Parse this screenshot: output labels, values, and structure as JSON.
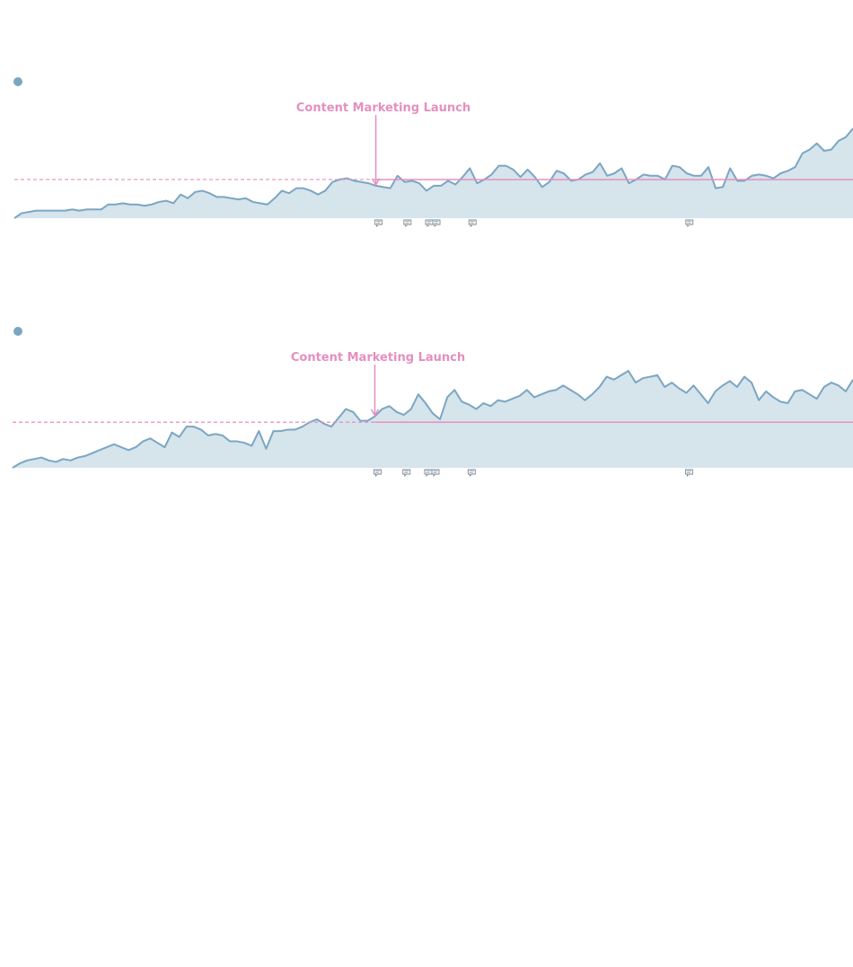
{
  "colors": {
    "line": "#7ba6c2",
    "area": "#d6e4ec",
    "annotation": "#e58fbf",
    "note_icon": "#7a8a96"
  },
  "chart_data": [
    {
      "type": "area",
      "title": "",
      "xlabel": "",
      "ylabel": "",
      "grid": false,
      "legend": "top-left",
      "series": [
        {
          "values": [
            0,
            4,
            5,
            6,
            6,
            6,
            6,
            6,
            7,
            6,
            7,
            7,
            7,
            11,
            11,
            12,
            11,
            11,
            10,
            11,
            13,
            14,
            12,
            19,
            16,
            21,
            22,
            20,
            17,
            17,
            16,
            15,
            16,
            13,
            12,
            11,
            16,
            22,
            20,
            24,
            24,
            22,
            19,
            22,
            29,
            31,
            32,
            30,
            29,
            28,
            26,
            25,
            24,
            34,
            29,
            30,
            28,
            22,
            26,
            26,
            30,
            27,
            33,
            40,
            28,
            31,
            35,
            42,
            42,
            39,
            33,
            39,
            33,
            25,
            29,
            38,
            36,
            30,
            31,
            35,
            37,
            44,
            34,
            36,
            40,
            28,
            31,
            35,
            34,
            34,
            31,
            42,
            41,
            36,
            34,
            34,
            41,
            24,
            25,
            40,
            30,
            30,
            34,
            35,
            34,
            32,
            36,
            38,
            41,
            52,
            55,
            60,
            54,
            55,
            62,
            65,
            72
          ],
          "start_index": 0
        }
      ],
      "annotation": {
        "label": "Content Marketing Launch",
        "x_index": 50,
        "baseline_value": 31
      },
      "comment_markers": [
        50,
        54,
        57,
        58,
        63,
        93
      ]
    },
    {
      "type": "area",
      "title": "",
      "xlabel": "",
      "ylabel": "",
      "grid": false,
      "legend": "top-left",
      "series": [
        {
          "values": [
            0,
            3,
            5,
            6,
            7,
            5,
            4,
            6,
            5,
            7,
            8,
            10,
            12,
            14,
            16,
            14,
            12,
            14,
            18,
            20,
            17,
            14,
            24,
            21,
            28,
            28,
            26,
            22,
            23,
            22,
            18,
            18,
            17,
            15,
            25,
            13,
            25,
            25,
            26,
            26,
            28,
            31,
            33,
            30,
            28,
            34,
            40,
            38,
            32,
            32,
            35,
            40,
            42,
            38,
            36,
            40,
            50,
            44,
            37,
            33,
            48,
            53,
            45,
            43,
            40,
            44,
            42,
            46,
            45,
            47,
            49,
            53,
            48,
            50,
            52,
            53,
            56,
            53,
            50,
            46,
            50,
            55,
            62,
            60,
            63,
            66,
            58,
            61,
            62,
            63,
            55,
            58,
            54,
            51,
            56,
            50,
            44,
            52,
            56,
            59,
            55,
            62,
            58,
            46,
            52,
            48,
            45,
            44,
            52,
            53,
            50,
            47,
            55,
            58,
            56,
            52,
            60
          ],
          "start_index": 0
        }
      ],
      "annotation": {
        "label": "Content Marketing Launch",
        "x_index": 50,
        "baseline_value": 31
      },
      "comment_markers": [
        50,
        54,
        57,
        58,
        63,
        93
      ]
    }
  ]
}
